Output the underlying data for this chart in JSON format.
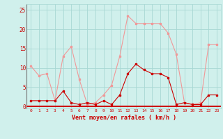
{
  "x": [
    0,
    1,
    2,
    3,
    4,
    5,
    6,
    7,
    8,
    9,
    10,
    11,
    12,
    13,
    14,
    15,
    16,
    17,
    18,
    19,
    20,
    21,
    22,
    23
  ],
  "rafales": [
    10.5,
    8.0,
    8.5,
    1.5,
    13.0,
    15.5,
    7.0,
    0.5,
    1.0,
    3.0,
    5.5,
    13.0,
    23.5,
    21.5,
    21.5,
    21.5,
    21.5,
    19.0,
    13.5,
    1.0,
    0.5,
    1.0,
    16.0,
    16.0
  ],
  "moyen": [
    1.5,
    1.5,
    1.5,
    1.5,
    4.0,
    1.0,
    0.5,
    1.0,
    0.5,
    1.5,
    0.5,
    3.0,
    8.5,
    11.0,
    9.5,
    8.5,
    8.5,
    7.5,
    0.5,
    1.0,
    0.5,
    0.5,
    3.0,
    3.0
  ],
  "bg_color": "#d0f0ec",
  "grid_color": "#a8d8d4",
  "line_color_rafales": "#f09898",
  "line_color_moyen": "#cc0000",
  "xlabel": "Vent moyen/en rafales ( km/h )",
  "xlabel_color": "#cc0000",
  "ylabel_ticks": [
    0,
    5,
    10,
    15,
    20,
    25
  ],
  "ylim": [
    -0.5,
    26.5
  ],
  "xlim": [
    -0.5,
    23.5
  ]
}
